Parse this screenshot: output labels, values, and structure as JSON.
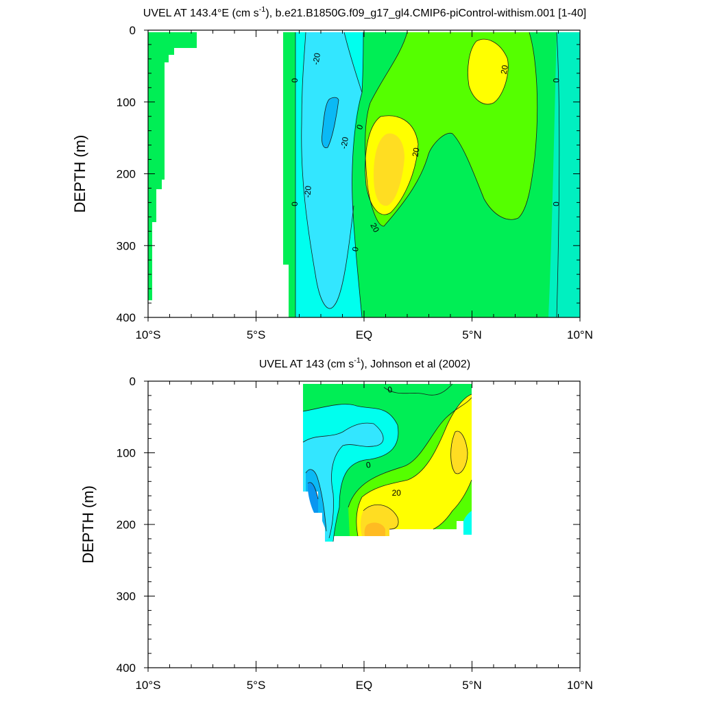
{
  "colors": {
    "cyan": "#00ffee",
    "light_cyan": "#33e6ff",
    "blue": "#0ab9f5",
    "dark_blue": "#0a96f0",
    "green": "#00ee55",
    "lime": "#55ff00",
    "yellow": "#ffff00",
    "gold": "#ffdd22",
    "orange": "#ffbb22",
    "aqua_green": "#00f0c0",
    "contour": "#1a1a1a"
  },
  "chart_data": [
    {
      "type": "heatmap",
      "title_main": "UVEL AT 143.4°E (cm s",
      "title_sup": "-1",
      "title_rest": "), b.e21.B1850G.f09_g17_gl4.CMIP6-piControl-withism.001 [1-40]",
      "xlabel": "",
      "ylabel": "DEPTH (m)",
      "xlim": [
        -10,
        10
      ],
      "ylim": [
        400,
        0
      ],
      "x_ticks": [
        -10,
        -5,
        0,
        5,
        10
      ],
      "x_tick_labels": [
        "10°S",
        "5°S",
        "EQ",
        "5°N",
        "10°N"
      ],
      "y_ticks": [
        0,
        100,
        200,
        300,
        400
      ],
      "y_tick_labels": [
        "0",
        "100",
        "200",
        "300",
        "400"
      ],
      "grid": false,
      "legend": "none",
      "contour_labels": [
        {
          "text": "-20",
          "x": -2.2,
          "y": 40,
          "rot": -80
        },
        {
          "text": "20",
          "x": 6.5,
          "y": 55,
          "rot": -80
        },
        {
          "text": "0",
          "x": -3.2,
          "y": 70,
          "rot": -90
        },
        {
          "text": "0",
          "x": 8.9,
          "y": 70,
          "rot": -90
        },
        {
          "text": "0",
          "x": -0.2,
          "y": 135,
          "rot": -70
        },
        {
          "text": "-20",
          "x": -0.9,
          "y": 157,
          "rot": -80
        },
        {
          "text": "20",
          "x": 2.4,
          "y": 170,
          "rot": -80
        },
        {
          "text": "-20",
          "x": -2.6,
          "y": 225,
          "rot": -85
        },
        {
          "text": "0",
          "x": -3.2,
          "y": 242,
          "rot": -90
        },
        {
          "text": "0",
          "x": 8.9,
          "y": 242,
          "rot": -90
        },
        {
          "text": "20",
          "x": 0.5,
          "y": 275,
          "rot": 60
        },
        {
          "text": "0",
          "x": -0.4,
          "y": 305,
          "rot": -80
        }
      ]
    },
    {
      "type": "heatmap",
      "title_main": "UVEL AT 143 (cm s",
      "title_sup": "-1",
      "title_rest": "), Johnson et al (2002)",
      "xlabel": "",
      "ylabel": "DEPTH (m)",
      "xlim": [
        -10,
        10
      ],
      "ylim": [
        400,
        0
      ],
      "x_ticks": [
        -10,
        -5,
        0,
        5,
        10
      ],
      "x_tick_labels": [
        "10°S",
        "5°S",
        "EQ",
        "5°N",
        "10°N"
      ],
      "y_ticks": [
        0,
        100,
        200,
        300,
        400
      ],
      "y_tick_labels": [
        "0",
        "100",
        "200",
        "300",
        "400"
      ],
      "grid": false,
      "legend": "none",
      "contour_labels": [
        {
          "text": "0",
          "x": 1.2,
          "y": 12,
          "rot": -10
        },
        {
          "text": "0",
          "x": 0.2,
          "y": 117,
          "rot": -10
        },
        {
          "text": "20",
          "x": 1.5,
          "y": 156,
          "rot": 0
        }
      ]
    }
  ]
}
